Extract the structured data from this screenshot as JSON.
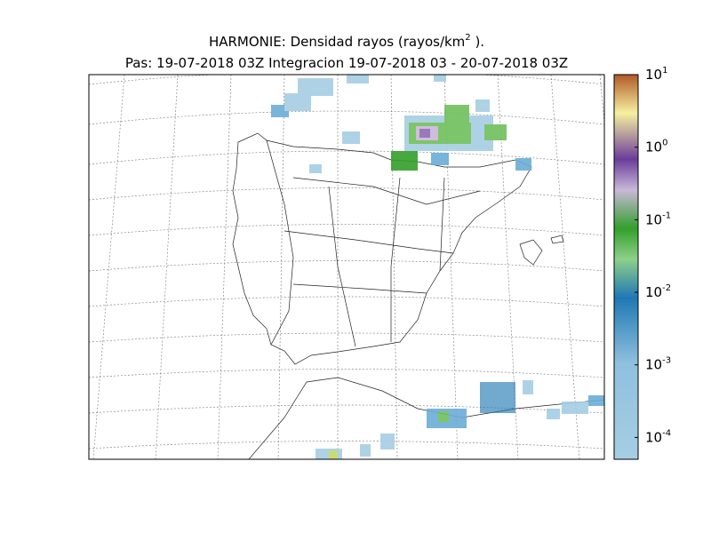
{
  "title": {
    "text": "HARMONIE: Densidad rayos  (rayos/km",
    "sup": "2",
    "tail": " )."
  },
  "subtitle": "Pas: 19-07-2018 03Z Integracion 19-07-2018 03 - 20-07-2018 03Z",
  "colorbar": {
    "scale": "log",
    "lim": [
      5e-05,
      10
    ],
    "ticks": [
      {
        "value": 10,
        "base": "10",
        "exp": "1"
      },
      {
        "value": 1,
        "base": "10",
        "exp": "0"
      },
      {
        "value": 0.1,
        "base": "10",
        "exp": "-1"
      },
      {
        "value": 0.01,
        "base": "10",
        "exp": "-2"
      },
      {
        "value": 0.001,
        "base": "10",
        "exp": "-3"
      },
      {
        "value": 0.0001,
        "base": "10",
        "exp": "-4"
      }
    ]
  }
}
